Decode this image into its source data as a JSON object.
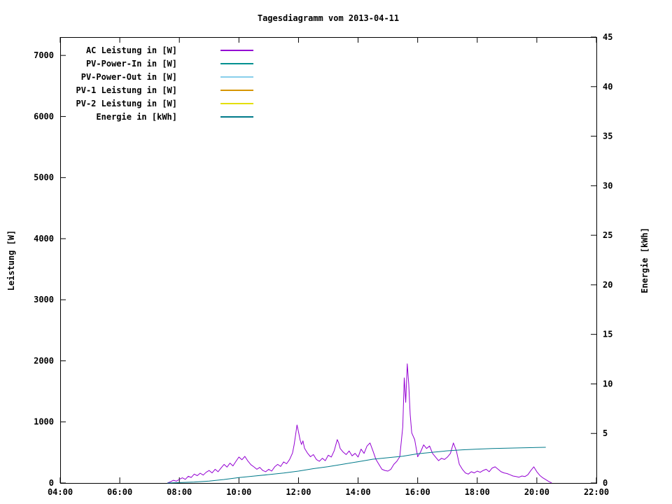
{
  "title": "Tagesdiagramm vom 2013-04-11",
  "chart_data": {
    "type": "line",
    "title": "Tagesdiagramm vom 2013-04-11",
    "xlabel": "",
    "ylabel_left": "Leistung [W]",
    "ylabel_right": "Energie [kWh]",
    "x_range_hours": [
      4,
      22
    ],
    "y_left_range": [
      0,
      7300
    ],
    "y_right_range": [
      0,
      45
    ],
    "grid": "off",
    "legend_position": "top-left-inside",
    "x_ticks": {
      "values": [
        4,
        6,
        8,
        10,
        12,
        14,
        16,
        18,
        20,
        22
      ],
      "labels": [
        "04:00",
        "06:00",
        "08:00",
        "10:00",
        "12:00",
        "14:00",
        "16:00",
        "18:00",
        "20:00",
        "22:00"
      ]
    },
    "y_left_ticks": {
      "values": [
        0,
        1000,
        2000,
        3000,
        4000,
        5000,
        6000,
        7000
      ],
      "labels": [
        "0",
        "1000",
        "2000",
        "3000",
        "4000",
        "5000",
        "6000",
        "7000"
      ]
    },
    "y_right_ticks": {
      "values": [
        0,
        5,
        10,
        15,
        20,
        25,
        30,
        35,
        40,
        45
      ],
      "labels": [
        "0",
        "5",
        "10",
        "15",
        "20",
        "25",
        "30",
        "35",
        "40",
        "45"
      ]
    },
    "legend": [
      {
        "label": "AC Leistung in [W]",
        "color": "#9400d3"
      },
      {
        "label": "PV-Power-In in [W]",
        "color": "#009090"
      },
      {
        "label": "PV-Power-Out in [W]",
        "color": "#87ceeb"
      },
      {
        "label": "PV-1 Leistung in [W]",
        "color": "#d69500"
      },
      {
        "label": "PV-2 Leistung in [W]",
        "color": "#e3df00"
      },
      {
        "label": "Energie in [kWh]",
        "color": "#007a8a"
      }
    ],
    "series": [
      {
        "name": "AC Leistung in [W]",
        "axis": "left",
        "unit": "W",
        "color": "#9400d3",
        "points": [
          [
            7.6,
            0
          ],
          [
            7.7,
            20
          ],
          [
            7.8,
            45
          ],
          [
            7.9,
            30
          ],
          [
            8.0,
            60
          ],
          [
            8.1,
            85
          ],
          [
            8.2,
            60
          ],
          [
            8.3,
            110
          ],
          [
            8.4,
            90
          ],
          [
            8.5,
            145
          ],
          [
            8.6,
            120
          ],
          [
            8.7,
            160
          ],
          [
            8.8,
            130
          ],
          [
            8.9,
            175
          ],
          [
            9.0,
            205
          ],
          [
            9.1,
            165
          ],
          [
            9.2,
            225
          ],
          [
            9.3,
            185
          ],
          [
            9.4,
            245
          ],
          [
            9.5,
            305
          ],
          [
            9.6,
            260
          ],
          [
            9.7,
            325
          ],
          [
            9.8,
            280
          ],
          [
            9.9,
            355
          ],
          [
            10.0,
            425
          ],
          [
            10.1,
            380
          ],
          [
            10.2,
            435
          ],
          [
            10.3,
            360
          ],
          [
            10.4,
            300
          ],
          [
            10.5,
            265
          ],
          [
            10.6,
            225
          ],
          [
            10.7,
            255
          ],
          [
            10.8,
            205
          ],
          [
            10.9,
            185
          ],
          [
            11.0,
            225
          ],
          [
            11.1,
            195
          ],
          [
            11.2,
            265
          ],
          [
            11.3,
            305
          ],
          [
            11.4,
            270
          ],
          [
            11.5,
            345
          ],
          [
            11.6,
            315
          ],
          [
            11.7,
            385
          ],
          [
            11.8,
            490
          ],
          [
            11.85,
            620
          ],
          [
            11.9,
            780
          ],
          [
            11.95,
            950
          ],
          [
            12.0,
            840
          ],
          [
            12.05,
            710
          ],
          [
            12.1,
            630
          ],
          [
            12.15,
            690
          ],
          [
            12.2,
            570
          ],
          [
            12.3,
            490
          ],
          [
            12.4,
            430
          ],
          [
            12.5,
            465
          ],
          [
            12.6,
            385
          ],
          [
            12.7,
            355
          ],
          [
            12.8,
            405
          ],
          [
            12.9,
            365
          ],
          [
            13.0,
            455
          ],
          [
            13.1,
            425
          ],
          [
            13.2,
            530
          ],
          [
            13.3,
            710
          ],
          [
            13.35,
            655
          ],
          [
            13.4,
            565
          ],
          [
            13.5,
            505
          ],
          [
            13.6,
            465
          ],
          [
            13.7,
            525
          ],
          [
            13.8,
            445
          ],
          [
            13.9,
            485
          ],
          [
            14.0,
            425
          ],
          [
            14.1,
            555
          ],
          [
            14.2,
            485
          ],
          [
            14.3,
            605
          ],
          [
            14.4,
            655
          ],
          [
            14.5,
            525
          ],
          [
            14.6,
            385
          ],
          [
            14.7,
            305
          ],
          [
            14.8,
            225
          ],
          [
            14.9,
            205
          ],
          [
            15.0,
            195
          ],
          [
            15.1,
            225
          ],
          [
            15.2,
            305
          ],
          [
            15.3,
            355
          ],
          [
            15.4,
            430
          ],
          [
            15.5,
            920
          ],
          [
            15.55,
            1720
          ],
          [
            15.6,
            1320
          ],
          [
            15.65,
            1950
          ],
          [
            15.7,
            1620
          ],
          [
            15.75,
            1120
          ],
          [
            15.8,
            820
          ],
          [
            15.9,
            710
          ],
          [
            16.0,
            430
          ],
          [
            16.1,
            510
          ],
          [
            16.2,
            625
          ],
          [
            16.3,
            565
          ],
          [
            16.4,
            605
          ],
          [
            16.5,
            485
          ],
          [
            16.6,
            425
          ],
          [
            16.7,
            365
          ],
          [
            16.8,
            405
          ],
          [
            16.9,
            385
          ],
          [
            17.0,
            425
          ],
          [
            17.1,
            485
          ],
          [
            17.2,
            655
          ],
          [
            17.3,
            525
          ],
          [
            17.4,
            305
          ],
          [
            17.5,
            225
          ],
          [
            17.6,
            165
          ],
          [
            17.7,
            145
          ],
          [
            17.8,
            185
          ],
          [
            17.9,
            165
          ],
          [
            18.0,
            195
          ],
          [
            18.1,
            175
          ],
          [
            18.2,
            205
          ],
          [
            18.3,
            225
          ],
          [
            18.4,
            185
          ],
          [
            18.5,
            245
          ],
          [
            18.6,
            265
          ],
          [
            18.7,
            225
          ],
          [
            18.8,
            185
          ],
          [
            18.9,
            165
          ],
          [
            19.0,
            155
          ],
          [
            19.1,
            135
          ],
          [
            19.2,
            115
          ],
          [
            19.3,
            105
          ],
          [
            19.4,
            95
          ],
          [
            19.5,
            115
          ],
          [
            19.6,
            105
          ],
          [
            19.7,
            135
          ],
          [
            19.8,
            205
          ],
          [
            19.9,
            265
          ],
          [
            20.0,
            185
          ],
          [
            20.1,
            125
          ],
          [
            20.2,
            85
          ],
          [
            20.3,
            55
          ],
          [
            20.4,
            25
          ],
          [
            20.5,
            0
          ]
        ]
      },
      {
        "name": "Energie in [kWh]",
        "axis": "right",
        "unit": "kWh",
        "color": "#007a8a",
        "points": [
          [
            7.6,
            0
          ],
          [
            8.0,
            0.04
          ],
          [
            8.5,
            0.1
          ],
          [
            9.0,
            0.2
          ],
          [
            9.5,
            0.35
          ],
          [
            10.0,
            0.55
          ],
          [
            10.5,
            0.7
          ],
          [
            11.0,
            0.85
          ],
          [
            11.5,
            1.0
          ],
          [
            12.0,
            1.2
          ],
          [
            12.5,
            1.45
          ],
          [
            13.0,
            1.65
          ],
          [
            13.5,
            1.9
          ],
          [
            14.0,
            2.15
          ],
          [
            14.5,
            2.4
          ],
          [
            15.0,
            2.55
          ],
          [
            15.5,
            2.7
          ],
          [
            16.0,
            2.95
          ],
          [
            16.5,
            3.1
          ],
          [
            17.0,
            3.25
          ],
          [
            17.5,
            3.35
          ],
          [
            18.0,
            3.42
          ],
          [
            18.5,
            3.48
          ],
          [
            19.0,
            3.52
          ],
          [
            19.5,
            3.55
          ],
          [
            20.0,
            3.58
          ],
          [
            20.3,
            3.6
          ]
        ]
      }
    ]
  }
}
